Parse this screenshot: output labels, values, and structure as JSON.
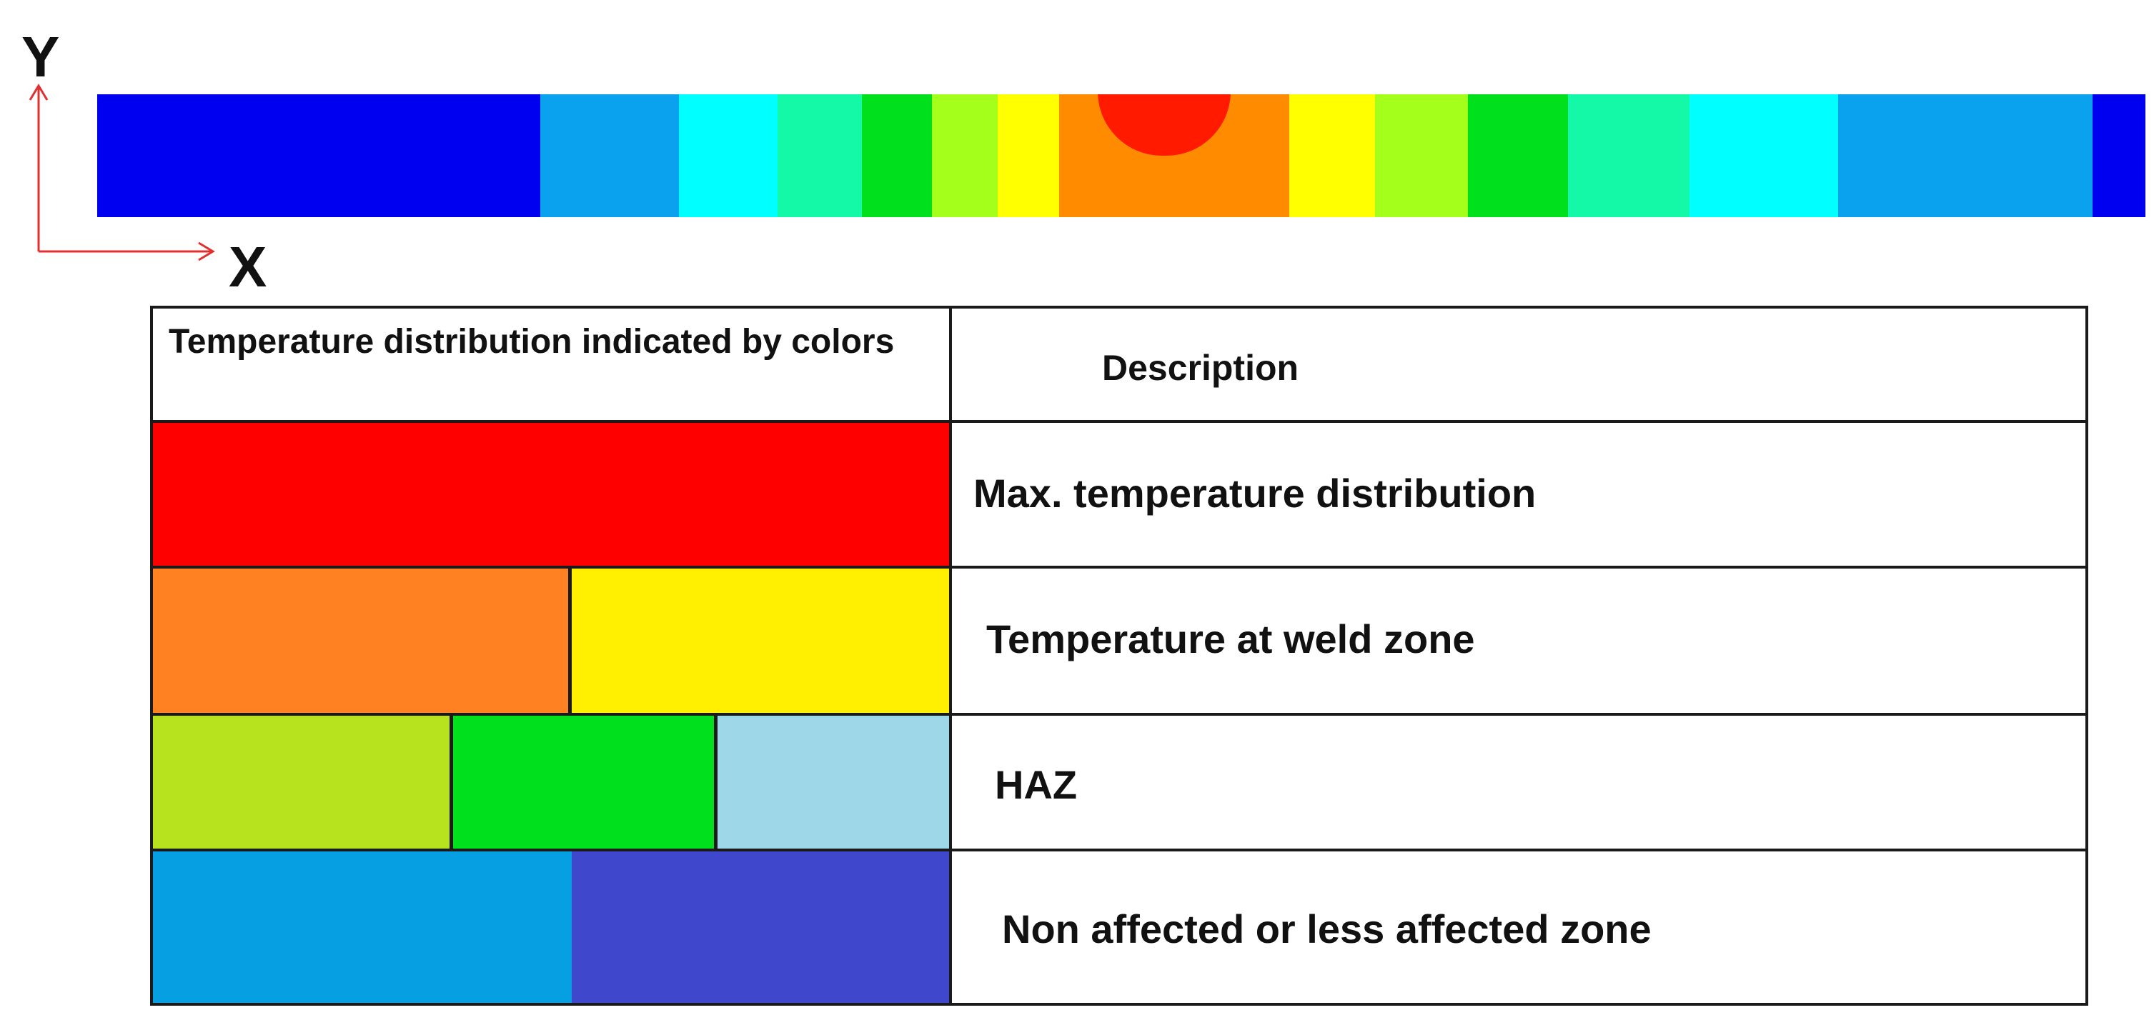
{
  "axes": {
    "y_label": "Y",
    "x_label": "X",
    "arrow_color": "#e03030"
  },
  "temperature_strip": {
    "bands": [
      {
        "color": "#0000f0"
      },
      {
        "color": "#0aa2ef"
      },
      {
        "color": "#00ffff"
      },
      {
        "color": "#13f9a7"
      },
      {
        "color": "#00e01c"
      },
      {
        "color": "#a4ff1a"
      },
      {
        "color": "#ffff00"
      },
      {
        "color": "#ff8c00"
      },
      {
        "color": "#ffff00"
      },
      {
        "color": "#a4ff1a"
      },
      {
        "color": "#00e01c"
      },
      {
        "color": "#13f9a7"
      },
      {
        "color": "#00ffff"
      },
      {
        "color": "#0aa2ef"
      },
      {
        "color": "#0000f0"
      }
    ],
    "hot_spot_color": "#ff1a00"
  },
  "legend_table": {
    "header": {
      "color_column": "Temperature distribution indicated by colors",
      "description_column": "Description"
    },
    "rows": [
      {
        "description": "Max. temperature distribution",
        "swatches": [
          "#ff0000"
        ]
      },
      {
        "description": "Temperature at weld zone",
        "swatches": [
          "#ff8122",
          "#ffef00"
        ]
      },
      {
        "description": "HAZ",
        "swatches": [
          "#b6e31e",
          "#00e01c",
          "#9ed8e8"
        ]
      },
      {
        "description": "Non affected or less affected zone",
        "swatches": [
          "#06a0e2",
          "#3f48cc"
        ]
      }
    ]
  }
}
